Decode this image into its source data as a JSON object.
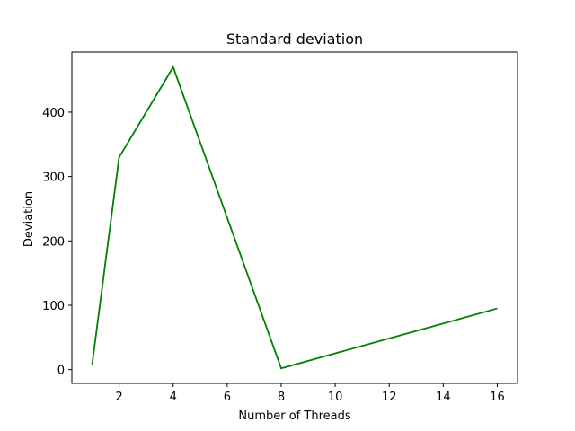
{
  "chart_data": {
    "type": "line",
    "title": "Standard deviation",
    "xlabel": "Number of Threads",
    "ylabel": "Deviation",
    "x": [
      1,
      2,
      4,
      8,
      16
    ],
    "series": [
      {
        "values": [
          8,
          330,
          470,
          2,
          95
        ],
        "color": "#008000"
      }
    ],
    "xlim": [
      0.25,
      16.75
    ],
    "ylim": [
      -21.4,
      493.4
    ],
    "xticks": [
      2,
      4,
      6,
      8,
      10,
      12,
      14,
      16
    ],
    "yticks": [
      0,
      100,
      200,
      300,
      400
    ],
    "grid": false,
    "legend": "none"
  }
}
